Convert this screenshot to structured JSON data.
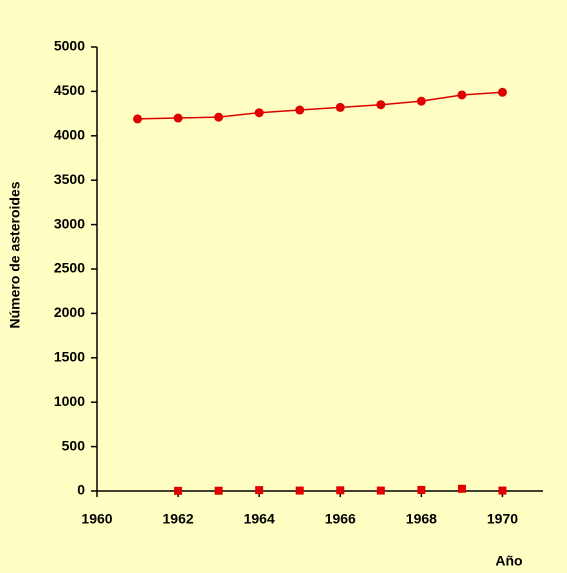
{
  "chart_data": {
    "type": "line",
    "x_label": "Año",
    "y_label": "Número de asteroides",
    "x": [
      1961,
      1962,
      1963,
      1964,
      1965,
      1966,
      1967,
      1968,
      1969,
      1970
    ],
    "series": [
      {
        "color": "#e00000",
        "marker": "circle",
        "line": true,
        "values": [
          4190,
          4200,
          4210,
          4260,
          4290,
          4320,
          4350,
          4390,
          4460,
          4490
        ]
      },
      {
        "color": "#e00000",
        "marker": "square",
        "line": false,
        "values": [
          null,
          2,
          3,
          10,
          5,
          8,
          5,
          12,
          25,
          5
        ]
      }
    ],
    "xlim": [
      1960,
      1971
    ],
    "xticks": [
      1960,
      1962,
      1964,
      1966,
      1968,
      1970
    ],
    "ylim": [
      0,
      5000
    ],
    "yticks": [
      0,
      500,
      1000,
      1500,
      2000,
      2500,
      3000,
      3500,
      4000,
      4500,
      5000
    ]
  }
}
